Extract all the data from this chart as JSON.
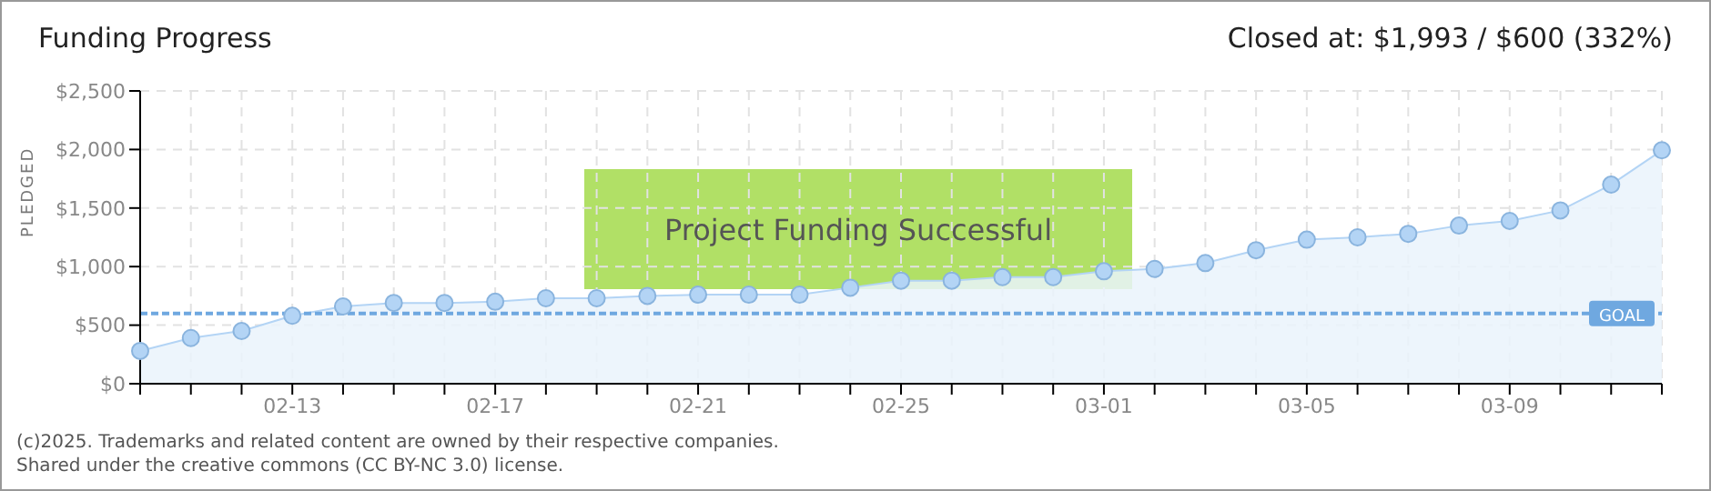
{
  "chart_data": {
    "type": "area",
    "title": "Funding Progress",
    "ylabel": "PLEDGED",
    "categories": [
      null,
      null,
      null,
      "02-13",
      null,
      null,
      null,
      "02-17",
      null,
      null,
      null,
      "02-21",
      null,
      null,
      null,
      "02-25",
      null,
      null,
      null,
      "03-01",
      null,
      null,
      null,
      "03-05",
      null,
      null,
      null,
      "03-09",
      null,
      null,
      null
    ],
    "series": [
      {
        "color": "#b3d4f5",
        "values": [
          280,
          390,
          450,
          580,
          660,
          690,
          690,
          700,
          730,
          730,
          750,
          760,
          760,
          760,
          820,
          880,
          880,
          910,
          910,
          960,
          980,
          1030,
          1140,
          1230,
          1250,
          1280,
          1350,
          1390,
          1480,
          1700,
          1993
        ]
      }
    ],
    "ylim": [
      0,
      2500
    ],
    "yticks": [
      {
        "value": 0,
        "label": "$0"
      },
      {
        "value": 500,
        "label": "$500"
      },
      {
        "value": 1000,
        "label": "$1,000"
      },
      {
        "value": 1500,
        "label": "$1,500"
      },
      {
        "value": 2000,
        "label": "$2,000"
      },
      {
        "value": 2500,
        "label": "$2,500"
      }
    ],
    "grid": true,
    "marker": "circle",
    "line_style": "solid",
    "ref_lines": [
      {
        "axis": "y",
        "value": 600,
        "label": "GOAL",
        "color": "#6fa8e0",
        "line_style": "dashed"
      }
    ],
    "annotations": [
      "Closed at: $1,993 / $600 (332%)",
      "Project Funding Successful",
      "(c)2025. Trademarks and related content are owned by their respective companies.",
      "Shared under the creative commons (CC BY-NC 3.0) license."
    ]
  }
}
